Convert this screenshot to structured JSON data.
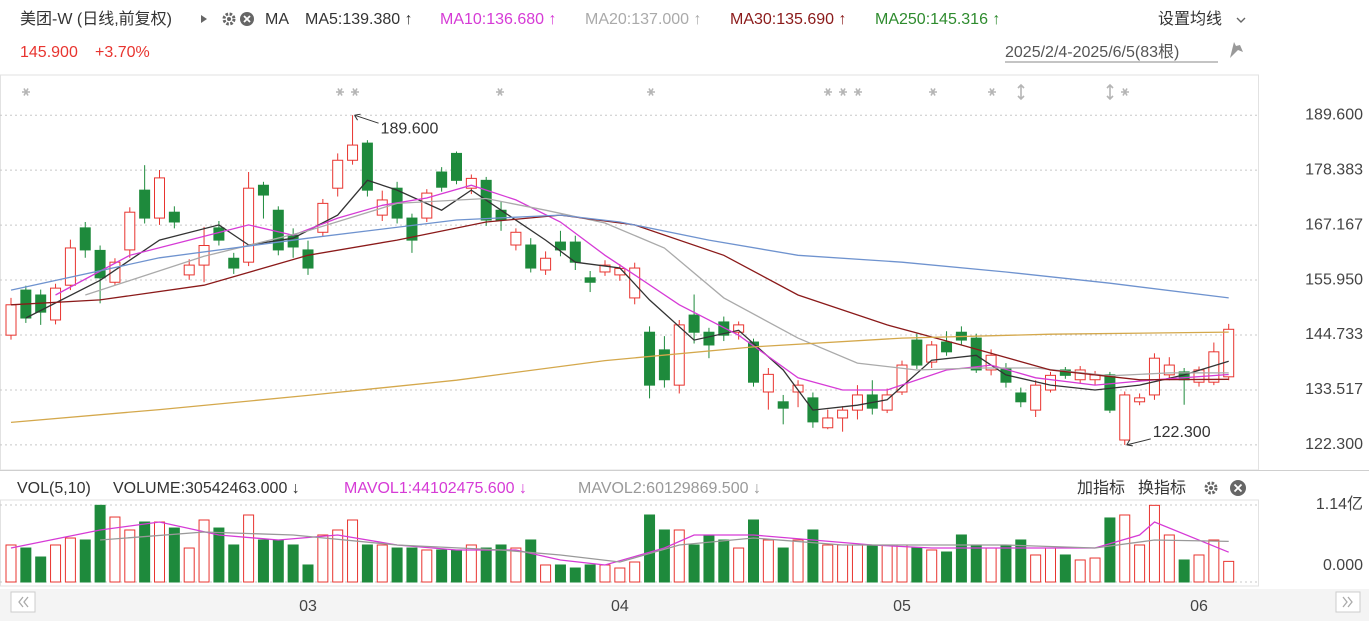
{
  "chart_data": [
    {
      "type": "candlestick",
      "title": "美团-W (日线,前复权)",
      "indicator": "MA",
      "last_price": "145.900",
      "change": "+3.70%",
      "settings": "设置均线",
      "range": "2025/2/4-2025/6/5(83根)",
      "up_color": "#e8342f",
      "down_color": "#1e8a3c",
      "open": [
        144.7,
        153.9,
        152.9,
        147.8,
        154.9,
        166.6,
        162.0,
        155.5,
        162.1,
        174.3,
        168.6,
        169.8,
        157.0,
        159.0,
        166.6,
        160.4,
        159.6,
        175.3,
        170.2,
        165.1,
        162.1,
        165.7,
        174.7,
        180.4,
        183.9,
        169.2,
        174.7,
        168.6,
        168.6,
        178.0,
        181.8,
        174.7,
        176.3,
        170.2,
        163.1,
        163.1,
        158.0,
        163.7,
        163.7,
        156.4,
        157.6,
        157.0,
        152.3,
        145.3,
        141.7,
        134.5,
        148.8,
        145.3,
        147.4,
        145.3,
        143.3,
        133.1,
        131.1,
        133.1,
        131.9,
        125.8,
        127.8,
        129.4,
        132.5,
        129.4,
        133.1,
        143.7,
        139.2,
        143.3,
        145.3,
        144.1,
        137.6,
        138.0,
        132.9,
        129.4,
        133.5,
        137.6,
        135.6,
        135.6,
        136.6,
        123.3,
        131.1,
        132.5,
        136.6,
        137.2,
        135.1,
        135.1,
        136.2
      ],
      "high": [
        152.3,
        154.8,
        154.0,
        155.2,
        164.2,
        167.8,
        163.0,
        160.4,
        170.8,
        179.4,
        178.4,
        171.0,
        160.2,
        166.8,
        168.0,
        161.5,
        178.0,
        176.0,
        171.0,
        166.5,
        164.0,
        172.5,
        181.8,
        189.6,
        184.5,
        174.2,
        176.0,
        169.5,
        174.5,
        179.0,
        182.2,
        177.5,
        177.0,
        172.0,
        166.5,
        164.5,
        161.8,
        166.0,
        165.0,
        157.8,
        160.0,
        159.2,
        159.5,
        146.5,
        144.5,
        147.8,
        153.0,
        146.2,
        148.5,
        147.5,
        144.0,
        138.0,
        132.5,
        135.5,
        133.0,
        129.5,
        130.2,
        134.5,
        135.5,
        133.8,
        139.5,
        145.0,
        143.5,
        145.5,
        146.5,
        145.0,
        141.8,
        139.0,
        134.0,
        135.5,
        137.2,
        138.2,
        138.4,
        137.4,
        137.2,
        133.2,
        132.8,
        141.0,
        140.2,
        138.0,
        138.3,
        143.2,
        147.0
      ],
      "low": [
        143.8,
        147.2,
        146.8,
        146.9,
        153.9,
        160.5,
        151.2,
        154.8,
        160.5,
        167.5,
        167.2,
        166.5,
        156.0,
        155.5,
        163.0,
        157.2,
        158.8,
        168.5,
        161.0,
        160.5,
        157.0,
        164.8,
        173.0,
        179.5,
        173.0,
        168.0,
        167.5,
        161.5,
        167.8,
        174.0,
        175.5,
        173.5,
        167.0,
        166.0,
        162.0,
        157.5,
        157.0,
        160.8,
        158.0,
        153.5,
        156.8,
        155.8,
        151.0,
        131.8,
        134.0,
        132.8,
        143.0,
        140.0,
        143.5,
        143.8,
        134.2,
        129.5,
        126.5,
        130.0,
        125.8,
        125.5,
        125.0,
        127.5,
        128.5,
        128.8,
        132.5,
        137.8,
        138.0,
        140.5,
        142.8,
        137.0,
        136.5,
        134.0,
        130.0,
        128.0,
        133.0,
        135.8,
        134.8,
        134.5,
        128.8,
        122.3,
        130.4,
        131.5,
        135.5,
        130.5,
        134.2,
        134.5,
        135.5
      ],
      "close": [
        150.9,
        148.2,
        149.4,
        154.3,
        162.5,
        162.1,
        156.4,
        159.6,
        169.8,
        168.6,
        176.8,
        167.8,
        159.0,
        163.0,
        164.1,
        158.4,
        174.7,
        173.3,
        162.1,
        162.7,
        158.4,
        171.6,
        180.4,
        183.5,
        174.3,
        172.3,
        168.6,
        164.1,
        173.7,
        174.9,
        176.3,
        176.7,
        168.2,
        168.2,
        165.7,
        158.4,
        160.4,
        162.1,
        159.6,
        155.5,
        159.0,
        158.3,
        158.4,
        134.5,
        135.6,
        146.8,
        145.3,
        142.7,
        144.7,
        146.8,
        135.1,
        136.7,
        129.8,
        134.5,
        127.0,
        127.8,
        129.4,
        132.5,
        129.8,
        132.5,
        138.6,
        138.6,
        142.7,
        141.3,
        143.7,
        137.6,
        140.6,
        135.1,
        131.1,
        134.5,
        136.5,
        136.5,
        137.6,
        136.6,
        129.4,
        132.5,
        131.9,
        140.0,
        138.6,
        135.6,
        137.6,
        141.3,
        145.9
      ],
      "series": [
        {
          "name": "MA5:139.380 ↑",
          "color": "#333333",
          "x": [
            1,
            6,
            10,
            14,
            16,
            19,
            22,
            24,
            26,
            29,
            31,
            33,
            36,
            38,
            41,
            43,
            46,
            49,
            52,
            54,
            57,
            59,
            62,
            65,
            67,
            70,
            73,
            76,
            79,
            82
          ],
          "values": [
            148.2,
            155.9,
            164.1,
            167.2,
            163.1,
            164.5,
            169.2,
            176.3,
            174.3,
            170.2,
            174.3,
            170.2,
            164.1,
            159.6,
            158.4,
            151.9,
            143.7,
            145.7,
            137.6,
            129.4,
            130.4,
            131.5,
            139.6,
            140.6,
            136.6,
            134.5,
            133.5,
            134.5,
            136.6,
            139.38
          ]
        },
        {
          "name": "MA10:136.680 ↑",
          "color": "#d63bd6",
          "x": [
            3,
            8,
            12,
            16,
            19,
            22,
            25,
            28,
            31,
            34,
            37,
            40,
            42,
            45,
            49,
            53,
            56,
            59,
            63,
            66,
            69,
            73,
            77,
            82
          ],
          "values": [
            152.9,
            161,
            164.1,
            167.2,
            165.1,
            168.6,
            171.2,
            172.7,
            175.3,
            172.3,
            167.8,
            161,
            157,
            150.9,
            144.7,
            136,
            133.5,
            133.5,
            137.6,
            138.6,
            136,
            134.5,
            135.6,
            136.68
          ]
        },
        {
          "name": "MA20:137.000 ↑",
          "color": "#aaaaaa",
          "x": [
            5,
            13,
            20,
            26,
            32,
            36,
            40,
            44,
            48,
            53,
            57,
            61,
            65,
            69,
            74,
            78,
            82
          ],
          "values": [
            152.9,
            160.8,
            166,
            171.6,
            172.6,
            170.2,
            167.6,
            162.5,
            152.3,
            144.1,
            139,
            137.6,
            138,
            138,
            136.4,
            137,
            137
          ]
        },
        {
          "name": "MA30:135.690 ↑",
          "color": "#8b1a1a",
          "x": [
            0,
            6,
            13,
            20,
            26,
            32,
            37,
            42,
            48,
            53,
            59,
            64,
            70,
            76,
            82
          ],
          "values": [
            150.9,
            151.9,
            154.9,
            161,
            164.1,
            167.8,
            169.2,
            167.2,
            161,
            152.9,
            146.8,
            142.7,
            137.6,
            135.6,
            135.69
          ]
        },
        {
          "name": "MA250:145.316 ↑",
          "color": "#d4a84c",
          "legend_color": "#2e8b2e",
          "x": [
            0,
            10,
            20,
            30,
            40,
            50,
            60,
            70,
            82
          ],
          "values": [
            126.9,
            129.5,
            132.4,
            135.5,
            139.5,
            142.3,
            144.1,
            144.9,
            145.316
          ]
        },
        {
          "color": "#6f93cf",
          "x": [
            0,
            10,
            20,
            30,
            37,
            41,
            47,
            53,
            60,
            67,
            74,
            82
          ],
          "values": [
            153.9,
            160.5,
            164.5,
            168.2,
            169.2,
            167.8,
            164.1,
            161,
            159.6,
            157.6,
            155.3,
            152.3
          ]
        }
      ],
      "annotations": [
        {
          "label": "189.600",
          "value": 189.6,
          "index": 23
        },
        {
          "label": "122.300",
          "value": 122.3,
          "index": 75
        }
      ],
      "ylim": [
        118.2,
        192.7
      ],
      "yticks": [
        {
          "value": 189.6,
          "label": "189.600"
        },
        178.383,
        167.167,
        {
          "value": 155.95,
          "label": "155.950"
        },
        144.733,
        133.517,
        {
          "value": 122.3,
          "label": "122.300"
        }
      ],
      "grid": true
    },
    {
      "type": "bar",
      "title": "VOL(5,10)",
      "volume_label": "VOLUME:30542463.000 ↓",
      "buttons": [
        "加指标",
        "换指标"
      ],
      "categories": [
        null,
        null,
        null,
        null,
        null,
        null,
        null,
        null,
        null,
        null,
        null,
        null,
        null,
        null,
        null,
        null,
        null,
        null,
        null,
        null,
        "03",
        null,
        null,
        null,
        null,
        null,
        null,
        null,
        null,
        null,
        null,
        null,
        null,
        null,
        null,
        null,
        null,
        null,
        null,
        null,
        null,
        "04",
        null,
        null,
        null,
        null,
        null,
        null,
        null,
        null,
        null,
        null,
        null,
        null,
        null,
        null,
        null,
        null,
        null,
        null,
        "05",
        null,
        null,
        null,
        null,
        null,
        null,
        null,
        null,
        null,
        null,
        null,
        null,
        null,
        null,
        null,
        null,
        null,
        null,
        null,
        "06",
        null,
        null
      ],
      "values": [
        54800000,
        50300000,
        37000000,
        54800000,
        65100000,
        62200000,
        113500000,
        96200000,
        77000000,
        88800000,
        88800000,
        79900000,
        50300000,
        91800000,
        79900000,
        54800000,
        99200000,
        62200000,
        62200000,
        54800000,
        25200000,
        69600000,
        77000000,
        91800000,
        54800000,
        54800000,
        50300000,
        50300000,
        47400000,
        47400000,
        47400000,
        54800000,
        50300000,
        54800000,
        50300000,
        62200000,
        25200000,
        25200000,
        20700000,
        25200000,
        25200000,
        20700000,
        29600000,
        99200000,
        77000000,
        77000000,
        54800000,
        69600000,
        62200000,
        50300000,
        91800000,
        62200000,
        50300000,
        62200000,
        77000000,
        54800000,
        54800000,
        54800000,
        54800000,
        54800000,
        54800000,
        50300000,
        47400000,
        44400000,
        69600000,
        54800000,
        50300000,
        54800000,
        62200000,
        40000000,
        50300000,
        40000000,
        32600000,
        35500000,
        94800000,
        99200000,
        54800000,
        113500000,
        69600000,
        32600000,
        40000000,
        62200000,
        30542463
      ],
      "series": [
        {
          "name": "MAVOL1:44102475.600 ↓",
          "color": "#d63bd6",
          "x": [
            0,
            6,
            10,
            14,
            18,
            22,
            26,
            30,
            34,
            37,
            40,
            44,
            46,
            50,
            54,
            58,
            62,
            66,
            69,
            73,
            76,
            77,
            82
          ],
          "values": [
            50300000,
            77000000,
            88800000,
            69600000,
            62200000,
            69600000,
            54800000,
            47400000,
            47400000,
            32600000,
            25200000,
            50300000,
            69600000,
            69600000,
            62200000,
            54800000,
            50300000,
            50300000,
            50300000,
            50300000,
            69600000,
            88800000,
            44102475.6
          ]
        },
        {
          "name": "MAVOL2:60129869.500 ↓",
          "color": "#999999",
          "x": [
            6,
            13,
            19,
            26,
            33,
            37,
            41,
            45,
            50,
            56,
            61,
            67,
            73,
            77,
            82
          ],
          "values": [
            62200000,
            74000000,
            69600000,
            54800000,
            47400000,
            40000000,
            29600000,
            54800000,
            65100000,
            54800000,
            54800000,
            54800000,
            50300000,
            62200000,
            60129869.5
          ]
        }
      ],
      "ylim": [
        0,
        114000000
      ],
      "yticks": [
        {
          "value": 0,
          "label": "0.000"
        },
        {
          "value": 114000000,
          "label": "1.14亿"
        }
      ],
      "grid": true
    }
  ]
}
